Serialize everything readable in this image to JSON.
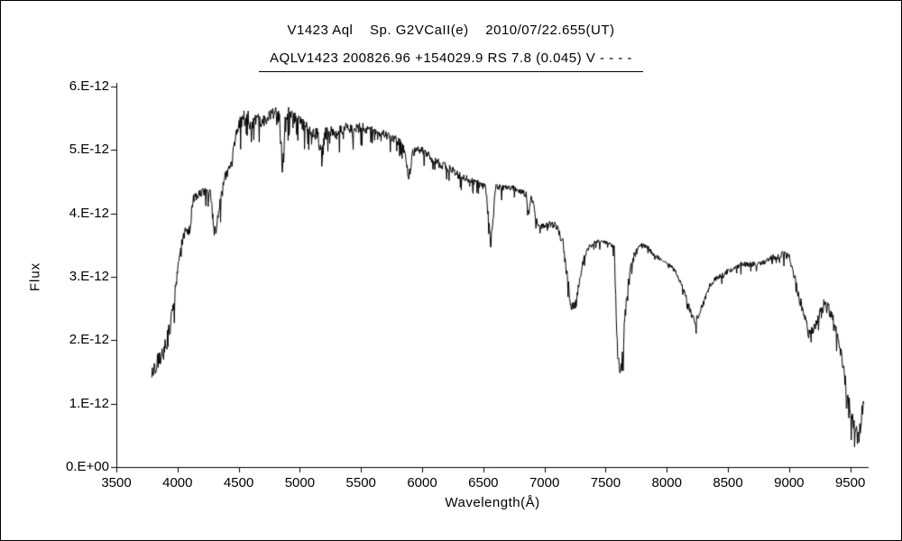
{
  "chart_data": {
    "type": "line",
    "title": "V1423 Aql    Sp. G2VCaII(e)    2010/07/22.655(UT)",
    "subtitle": "AQLV1423 200826.96 +154029.9 RS 7.8 (0.045) V - - - -",
    "xlabel": "Wavelength(Å)",
    "ylabel": "Flux",
    "xlim": [
      3500,
      9650
    ],
    "ylim_e12": [
      0,
      6
    ],
    "y_scale": 1e-12,
    "grid": false,
    "legend": "none",
    "line_color": "#000000",
    "background": "#ffffff",
    "xticks": [
      3500,
      4000,
      4500,
      5000,
      5500,
      6000,
      6500,
      7000,
      7500,
      8000,
      8500,
      9000,
      9500
    ],
    "ytick_values_e12": [
      0,
      1,
      2,
      3,
      4,
      5,
      6
    ],
    "ytick_labels": [
      "0.E+00",
      "1.E-12",
      "2.E-12",
      "3.E-12",
      "4.E-12",
      "5.E-12",
      "6.E-12"
    ],
    "series": [
      {
        "name": "V1423 Aql spectrum",
        "units": "flux values in 1e-12, points are [wavelength_A, flux_e12, noise_amplitude_e12]",
        "points_x_y_noise_e12": [
          [
            3790,
            1.45,
            0.18
          ],
          [
            3830,
            1.65,
            0.18
          ],
          [
            3870,
            1.75,
            0.2
          ],
          [
            3910,
            1.95,
            0.22
          ],
          [
            3933,
            2.1,
            0.25
          ],
          [
            3950,
            2.45,
            0.2
          ],
          [
            3970,
            2.6,
            0.22
          ],
          [
            4000,
            3.05,
            0.15
          ],
          [
            4030,
            3.5,
            0.12
          ],
          [
            4060,
            3.7,
            0.12
          ],
          [
            4100,
            3.75,
            0.15
          ],
          [
            4130,
            4.25,
            0.12
          ],
          [
            4170,
            4.3,
            0.1
          ],
          [
            4220,
            4.35,
            0.1
          ],
          [
            4270,
            4.3,
            0.12
          ],
          [
            4300,
            3.7,
            0.18
          ],
          [
            4320,
            3.75,
            0.15
          ],
          [
            4340,
            4.1,
            0.15
          ],
          [
            4380,
            4.55,
            0.12
          ],
          [
            4420,
            4.7,
            0.12
          ],
          [
            4460,
            5.05,
            0.15
          ],
          [
            4500,
            5.35,
            0.18
          ],
          [
            4540,
            5.5,
            0.2
          ],
          [
            4570,
            5.55,
            0.18
          ],
          [
            4600,
            5.35,
            0.18
          ],
          [
            4640,
            5.5,
            0.15
          ],
          [
            4680,
            5.45,
            0.18
          ],
          [
            4720,
            5.5,
            0.15
          ],
          [
            4760,
            5.55,
            0.15
          ],
          [
            4800,
            5.6,
            0.15
          ],
          [
            4830,
            5.55,
            0.2
          ],
          [
            4861,
            4.6,
            0.3
          ],
          [
            4880,
            5.5,
            0.15
          ],
          [
            4920,
            5.6,
            0.15
          ],
          [
            4960,
            5.5,
            0.15
          ],
          [
            5000,
            5.45,
            0.15
          ],
          [
            5050,
            5.35,
            0.15
          ],
          [
            5100,
            5.3,
            0.15
          ],
          [
            5150,
            5.2,
            0.2
          ],
          [
            5180,
            4.9,
            0.3
          ],
          [
            5210,
            5.25,
            0.15
          ],
          [
            5260,
            5.3,
            0.12
          ],
          [
            5320,
            5.3,
            0.12
          ],
          [
            5380,
            5.35,
            0.12
          ],
          [
            5440,
            5.3,
            0.12
          ],
          [
            5500,
            5.35,
            0.15
          ],
          [
            5560,
            5.3,
            0.12
          ],
          [
            5620,
            5.3,
            0.1
          ],
          [
            5680,
            5.25,
            0.1
          ],
          [
            5740,
            5.2,
            0.1
          ],
          [
            5800,
            5.15,
            0.1
          ],
          [
            5860,
            5.0,
            0.12
          ],
          [
            5890,
            4.5,
            0.15
          ],
          [
            5920,
            4.95,
            0.1
          ],
          [
            5960,
            5.0,
            0.1
          ],
          [
            6000,
            5.0,
            0.1
          ],
          [
            6060,
            4.9,
            0.1
          ],
          [
            6120,
            4.8,
            0.1
          ],
          [
            6180,
            4.75,
            0.1
          ],
          [
            6240,
            4.7,
            0.08
          ],
          [
            6300,
            4.6,
            0.1
          ],
          [
            6360,
            4.55,
            0.08
          ],
          [
            6420,
            4.5,
            0.08
          ],
          [
            6480,
            4.45,
            0.08
          ],
          [
            6520,
            4.4,
            0.08
          ],
          [
            6563,
            3.5,
            0.2
          ],
          [
            6600,
            4.4,
            0.08
          ],
          [
            6650,
            4.4,
            0.08
          ],
          [
            6700,
            4.4,
            0.06
          ],
          [
            6750,
            4.4,
            0.06
          ],
          [
            6800,
            4.35,
            0.06
          ],
          [
            6850,
            4.3,
            0.08
          ],
          [
            6870,
            4.0,
            0.1
          ],
          [
            6890,
            4.25,
            0.06
          ],
          [
            6910,
            4.15,
            0.06
          ],
          [
            6930,
            3.9,
            0.08
          ],
          [
            6960,
            3.8,
            0.06
          ],
          [
            7000,
            3.8,
            0.06
          ],
          [
            7050,
            3.85,
            0.06
          ],
          [
            7100,
            3.8,
            0.08
          ],
          [
            7150,
            3.55,
            0.1
          ],
          [
            7185,
            3.0,
            0.15
          ],
          [
            7220,
            2.5,
            0.15
          ],
          [
            7260,
            2.6,
            0.12
          ],
          [
            7300,
            3.1,
            0.1
          ],
          [
            7340,
            3.4,
            0.08
          ],
          [
            7380,
            3.5,
            0.06
          ],
          [
            7420,
            3.55,
            0.05
          ],
          [
            7460,
            3.55,
            0.05
          ],
          [
            7500,
            3.55,
            0.05
          ],
          [
            7540,
            3.5,
            0.05
          ],
          [
            7570,
            3.45,
            0.06
          ],
          [
            7595,
            1.9,
            0.2
          ],
          [
            7615,
            1.45,
            0.1
          ],
          [
            7640,
            1.8,
            0.15
          ],
          [
            7660,
            2.4,
            0.15
          ],
          [
            7685,
            2.9,
            0.1
          ],
          [
            7710,
            3.2,
            0.08
          ],
          [
            7740,
            3.4,
            0.06
          ],
          [
            7770,
            3.5,
            0.05
          ],
          [
            7810,
            3.5,
            0.05
          ],
          [
            7850,
            3.45,
            0.05
          ],
          [
            7890,
            3.35,
            0.05
          ],
          [
            7930,
            3.3,
            0.05
          ],
          [
            7970,
            3.25,
            0.05
          ],
          [
            8010,
            3.2,
            0.05
          ],
          [
            8050,
            3.15,
            0.06
          ],
          [
            8090,
            3.0,
            0.06
          ],
          [
            8130,
            2.85,
            0.06
          ],
          [
            8170,
            2.6,
            0.08
          ],
          [
            8210,
            2.35,
            0.08
          ],
          [
            8240,
            2.3,
            0.08
          ],
          [
            8270,
            2.45,
            0.08
          ],
          [
            8310,
            2.65,
            0.08
          ],
          [
            8350,
            2.85,
            0.06
          ],
          [
            8390,
            2.95,
            0.06
          ],
          [
            8430,
            3.0,
            0.06
          ],
          [
            8470,
            3.05,
            0.06
          ],
          [
            8510,
            3.1,
            0.06
          ],
          [
            8560,
            3.15,
            0.06
          ],
          [
            8610,
            3.2,
            0.06
          ],
          [
            8660,
            3.2,
            0.06
          ],
          [
            8710,
            3.2,
            0.06
          ],
          [
            8760,
            3.2,
            0.06
          ],
          [
            8810,
            3.25,
            0.06
          ],
          [
            8860,
            3.3,
            0.08
          ],
          [
            8910,
            3.3,
            0.08
          ],
          [
            8950,
            3.35,
            0.1
          ],
          [
            9000,
            3.3,
            0.1
          ],
          [
            9040,
            3.05,
            0.1
          ],
          [
            9080,
            2.7,
            0.12
          ],
          [
            9120,
            2.4,
            0.12
          ],
          [
            9160,
            2.1,
            0.12
          ],
          [
            9200,
            2.2,
            0.12
          ],
          [
            9240,
            2.35,
            0.12
          ],
          [
            9280,
            2.55,
            0.15
          ],
          [
            9320,
            2.5,
            0.15
          ],
          [
            9360,
            2.35,
            0.12
          ],
          [
            9400,
            2.05,
            0.12
          ],
          [
            9440,
            1.6,
            0.15
          ],
          [
            9480,
            1.1,
            0.15
          ],
          [
            9520,
            0.75,
            0.18
          ],
          [
            9550,
            0.55,
            0.2
          ],
          [
            9570,
            0.45,
            0.15
          ],
          [
            9590,
            0.8,
            0.2
          ],
          [
            9610,
            1.0,
            0.15
          ]
        ]
      }
    ]
  }
}
